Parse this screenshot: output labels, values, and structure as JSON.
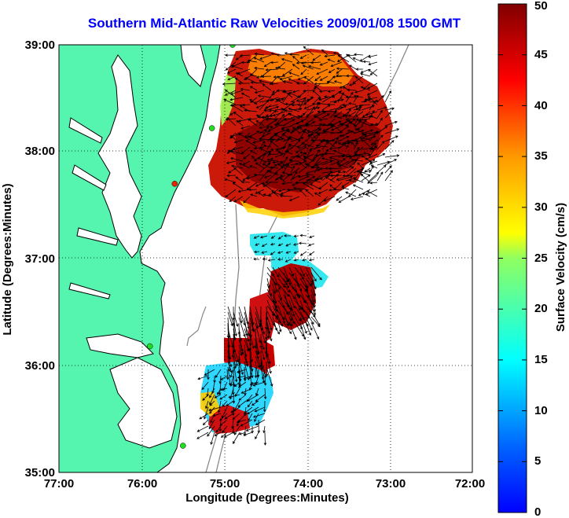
{
  "title": "Southern Mid-Atlantic Raw Velocities 2009/01/08 1500 GMT",
  "map": {
    "xlabel": "Longitude (Degrees:Minutes)",
    "ylabel": "Latitude (Degrees:Minutes)",
    "x_ticks": [
      "77:00",
      "76:00",
      "75:00",
      "74:00",
      "73:00",
      "72:00"
    ],
    "y_ticks": [
      "39:00",
      "38:00",
      "37:00",
      "36:00",
      "35:00"
    ],
    "lon_range": [
      -77,
      -72
    ],
    "lat_range": [
      35,
      39
    ]
  },
  "colorbar": {
    "label": "Surface Velocity (cm/s)",
    "ticks": [
      "0",
      "5",
      "10",
      "15",
      "20",
      "25",
      "30",
      "35",
      "40",
      "45",
      "50"
    ],
    "range": [
      0,
      50
    ]
  },
  "colors": {
    "land": "#55f5b0",
    "water": "#ffffff",
    "title": "#0000ff",
    "station_green": "#22dd22",
    "station_red": "#ee2200"
  },
  "stations": [
    {
      "lon": -74.9,
      "lat": 39.0,
      "color": "green"
    },
    {
      "lon": -75.15,
      "lat": 38.22,
      "color": "green"
    },
    {
      "lon": -75.6,
      "lat": 37.7,
      "color": "red"
    },
    {
      "lon": -75.9,
      "lat": 36.18,
      "color": "green"
    },
    {
      "lon": -75.5,
      "lat": 35.25,
      "color": "green"
    }
  ]
}
